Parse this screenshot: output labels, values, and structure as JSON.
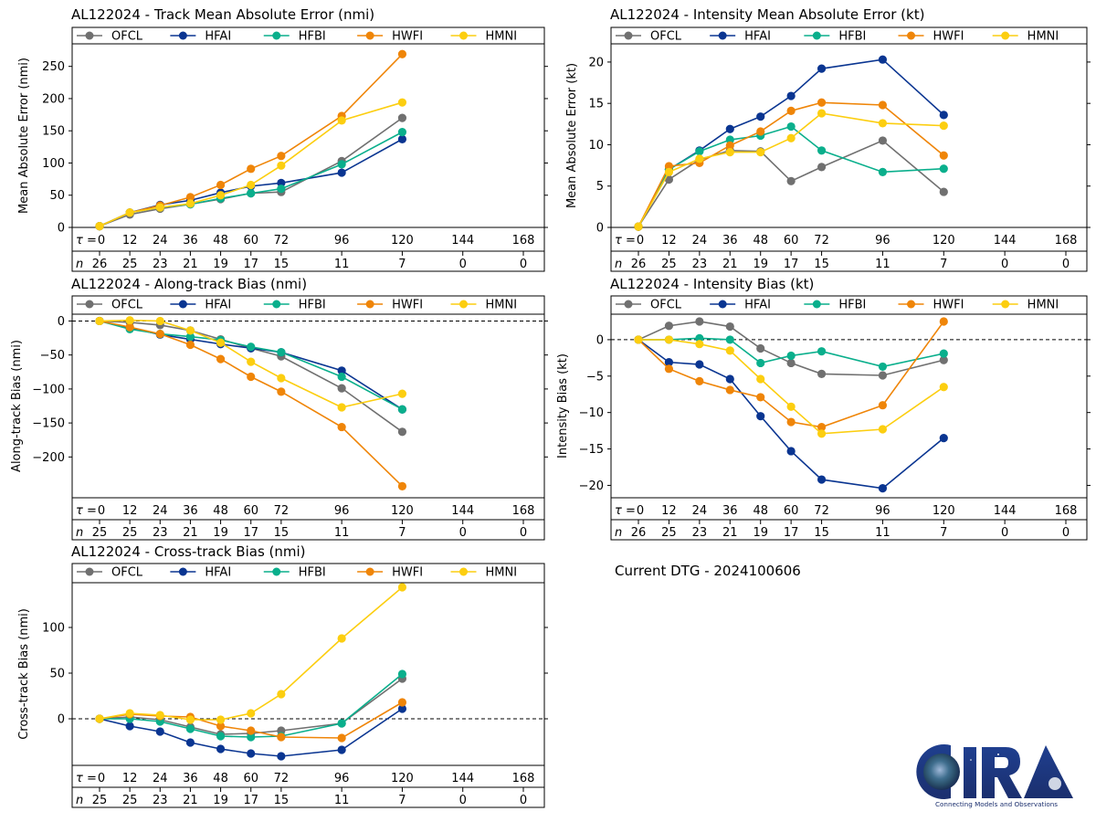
{
  "storm_id": "AL122024",
  "dtg_label": "Current DTG - 2024100606",
  "colors": {
    "OFCL": "#707070",
    "HFAI": "#0a3591",
    "HFBI": "#0aaf8c",
    "HWFI": "#ef8508",
    "HMNI": "#fcce10"
  },
  "logo": {
    "text": "CIRA",
    "tagline": "Connecting Models and Observations"
  },
  "chart_data": [
    {
      "id": "track_mae",
      "type": "line",
      "title": "AL122024 - Track Mean Absolute Error (nmi)",
      "ylabel": "Mean Absolute Error (nmi)",
      "xlabel": "",
      "ylim": [
        0,
        285
      ],
      "yticks": [
        0,
        50,
        100,
        150,
        200,
        250
      ],
      "zero_line": false,
      "tau_label": "τ = ",
      "n_label": "n",
      "x": [
        0,
        12,
        24,
        36,
        48,
        60,
        72,
        96,
        120,
        144,
        168
      ],
      "n": [
        26,
        25,
        23,
        21,
        19,
        17,
        15,
        11,
        7,
        0,
        0
      ],
      "legend": [
        "OFCL",
        "HFAI",
        "HFBI",
        "HWFI",
        "HMNI"
      ],
      "legend_position": "top",
      "series": [
        {
          "name": "OFCL",
          "values": [
            2,
            20,
            29,
            36,
            44,
            53,
            55,
            103,
            170
          ]
        },
        {
          "name": "HFAI",
          "values": [
            2,
            23,
            35,
            42,
            54,
            64,
            69,
            85,
            137
          ]
        },
        {
          "name": "HFBI",
          "values": [
            2,
            23,
            31,
            36,
            45,
            53,
            60,
            98,
            148
          ]
        },
        {
          "name": "HWFI",
          "values": [
            2,
            23,
            34,
            47,
            66,
            91,
            111,
            173,
            269
          ]
        },
        {
          "name": "HMNI",
          "values": [
            2,
            23,
            31,
            37,
            50,
            66,
            96,
            166,
            194
          ]
        }
      ]
    },
    {
      "id": "intensity_mae",
      "type": "line",
      "title": "AL122024 - Intensity Mean Absolute Error (kt)",
      "ylabel": "Mean Absolute Error (kt)",
      "xlabel": "",
      "ylim": [
        0,
        22.2
      ],
      "yticks": [
        0,
        5,
        10,
        15,
        20
      ],
      "zero_line": false,
      "tau_label": "τ = ",
      "n_label": "n",
      "x": [
        0,
        12,
        24,
        36,
        48,
        60,
        72,
        96,
        120,
        144,
        168
      ],
      "n": [
        26,
        25,
        23,
        21,
        19,
        17,
        15,
        11,
        7,
        0,
        0
      ],
      "legend": [
        "OFCL",
        "HFAI",
        "HFBI",
        "HWFI",
        "HMNI"
      ],
      "legend_position": "top",
      "series": [
        {
          "name": "OFCL",
          "values": [
            0.1,
            5.8,
            8.2,
            9.3,
            9.2,
            5.6,
            7.3,
            10.5,
            4.3
          ]
        },
        {
          "name": "HFAI",
          "values": [
            0.1,
            7.0,
            9.3,
            11.9,
            13.4,
            15.9,
            19.2,
            20.3,
            13.6
          ]
        },
        {
          "name": "HFBI",
          "values": [
            0.1,
            7.0,
            9.2,
            10.6,
            11.1,
            12.2,
            9.3,
            6.7,
            7.1
          ]
        },
        {
          "name": "HWFI",
          "values": [
            0.1,
            7.4,
            7.8,
            9.9,
            11.6,
            14.1,
            15.1,
            14.8,
            8.7
          ]
        },
        {
          "name": "HMNI",
          "values": [
            0.1,
            6.7,
            8.3,
            9.1,
            9.1,
            10.8,
            13.8,
            12.6,
            12.3
          ]
        }
      ]
    },
    {
      "id": "along_track_bias",
      "type": "line",
      "title": "AL122024 - Along-track Bias (nmi)",
      "ylabel": "Along-track Bias (nmi)",
      "xlabel": "",
      "ylim": [
        -260,
        10
      ],
      "yticks": [
        0,
        -50,
        -100,
        -150,
        -200
      ],
      "zero_line": true,
      "tau_label": "τ = ",
      "n_label": "n",
      "x": [
        0,
        12,
        24,
        36,
        48,
        60,
        72,
        96,
        120,
        144,
        168
      ],
      "n": [
        25,
        25,
        23,
        21,
        19,
        17,
        15,
        11,
        7,
        0,
        0
      ],
      "legend": [
        "OFCL",
        "HFAI",
        "HFBI",
        "HWFI",
        "HMNI"
      ],
      "legend_position": "top",
      "series": [
        {
          "name": "OFCL",
          "values": [
            0,
            -2,
            -6,
            -14,
            -27,
            -40,
            -52,
            -99,
            -163
          ]
        },
        {
          "name": "HFAI",
          "values": [
            0,
            -10,
            -20,
            -27,
            -34,
            -40,
            -46,
            -73,
            -130
          ]
        },
        {
          "name": "HFBI",
          "values": [
            0,
            -12,
            -19,
            -23,
            -28,
            -38,
            -46,
            -82,
            -130
          ]
        },
        {
          "name": "HWFI",
          "values": [
            0,
            -9,
            -19,
            -35,
            -56,
            -82,
            -104,
            -156,
            -243
          ]
        },
        {
          "name": "HMNI",
          "values": [
            0,
            1,
            0,
            -14,
            -32,
            -60,
            -84,
            -127,
            -107
          ]
        }
      ]
    },
    {
      "id": "intensity_bias",
      "type": "line",
      "title": "AL122024 - Intensity Bias (kt)",
      "ylabel": "Intensity Bias (kt)",
      "xlabel": "",
      "ylim": [
        -21.7,
        3.5
      ],
      "yticks": [
        0,
        -5,
        -10,
        -15,
        -20
      ],
      "zero_line": true,
      "tau_label": "τ = ",
      "n_label": "n",
      "x": [
        0,
        12,
        24,
        36,
        48,
        60,
        72,
        96,
        120,
        144,
        168
      ],
      "n": [
        26,
        25,
        23,
        21,
        19,
        17,
        15,
        11,
        7,
        0,
        0
      ],
      "legend": [
        "OFCL",
        "HFAI",
        "HFBI",
        "HWFI",
        "HMNI"
      ],
      "legend_position": "top",
      "series": [
        {
          "name": "OFCL",
          "values": [
            0,
            1.9,
            2.5,
            1.8,
            -1.2,
            -3.2,
            -4.7,
            -4.9,
            -2.8
          ]
        },
        {
          "name": "HFAI",
          "values": [
            0,
            -3.1,
            -3.4,
            -5.4,
            -10.5,
            -15.3,
            -19.2,
            -20.4,
            -13.5
          ]
        },
        {
          "name": "HFBI",
          "values": [
            0,
            0,
            0.2,
            0,
            -3.2,
            -2.2,
            -1.6,
            -3.7,
            -1.9
          ]
        },
        {
          "name": "HWFI",
          "values": [
            0,
            -4.0,
            -5.7,
            -6.9,
            -7.9,
            -11.3,
            -12.0,
            -9.0,
            2.5
          ]
        },
        {
          "name": "HMNI",
          "values": [
            0,
            0,
            -0.6,
            -1.5,
            -5.4,
            -9.2,
            -12.9,
            -12.3,
            -6.5
          ]
        }
      ]
    },
    {
      "id": "cross_track_bias",
      "type": "line",
      "title": "AL122024 - Cross-track Bias (nmi)",
      "ylabel": "Cross-track Bias (nmi)",
      "xlabel": "",
      "ylim": [
        -51,
        149
      ],
      "yticks": [
        0,
        50,
        100
      ],
      "zero_line": true,
      "tau_label": "τ = ",
      "n_label": "n",
      "x": [
        0,
        12,
        24,
        36,
        48,
        60,
        72,
        96,
        120,
        144,
        168
      ],
      "n": [
        25,
        25,
        23,
        21,
        19,
        17,
        15,
        11,
        7,
        0,
        0
      ],
      "legend": [
        "OFCL",
        "HFAI",
        "HFBI",
        "HWFI",
        "HMNI"
      ],
      "legend_position": "top",
      "series": [
        {
          "name": "OFCL",
          "values": [
            0,
            2,
            -1,
            -9,
            -17,
            -16,
            -13,
            -5,
            44
          ]
        },
        {
          "name": "HFAI",
          "values": [
            0,
            -8,
            -14,
            -26,
            -33,
            -38,
            -41,
            -34,
            11
          ]
        },
        {
          "name": "HFBI",
          "values": [
            0,
            0,
            -3,
            -11,
            -19,
            -20,
            -19,
            -5,
            49
          ]
        },
        {
          "name": "HWFI",
          "values": [
            0,
            5,
            3,
            2,
            -8,
            -13,
            -20,
            -21,
            18
          ]
        },
        {
          "name": "HMNI",
          "values": [
            0,
            6,
            4,
            -1,
            -1,
            6,
            27,
            88,
            144
          ]
        }
      ]
    }
  ]
}
